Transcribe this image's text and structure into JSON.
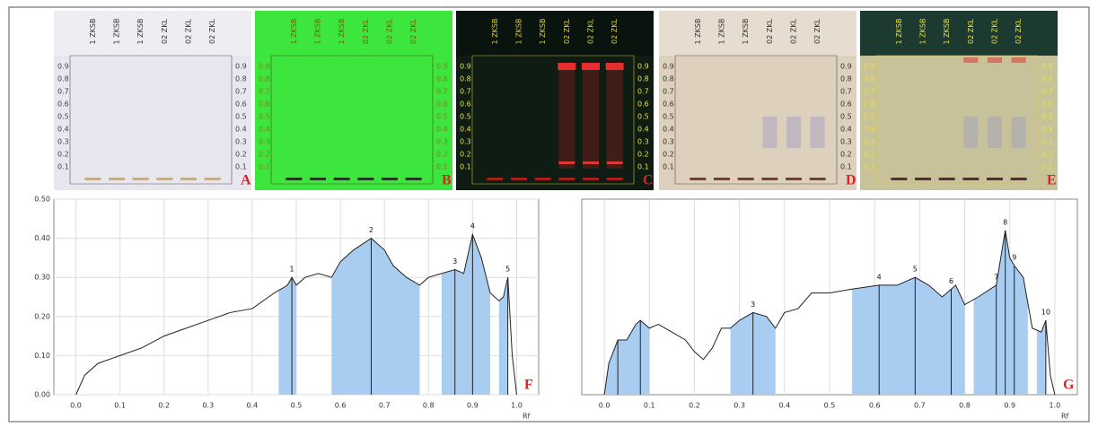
{
  "plates": [
    {
      "label": "A"
    },
    {
      "label": "B"
    },
    {
      "label": "C"
    },
    {
      "label": "D"
    },
    {
      "label": "E"
    }
  ],
  "plate_lanes": [
    "1 ZKSB",
    "1 ZKSB",
    "1 ZKSB",
    "02 ZKL",
    "02 ZKL",
    "02 ZKL"
  ],
  "plate_rf_ticks": [
    0.1,
    0.2,
    0.3,
    0.4,
    0.5,
    0.6,
    0.7,
    0.8,
    0.9
  ],
  "chart_data": [
    {
      "type": "line",
      "panel": "F",
      "x_label": "Rf",
      "x": [
        0.0,
        0.02,
        0.05,
        0.1,
        0.15,
        0.2,
        0.25,
        0.3,
        0.35,
        0.4,
        0.45,
        0.48,
        0.49,
        0.5,
        0.52,
        0.55,
        0.58,
        0.6,
        0.63,
        0.67,
        0.7,
        0.72,
        0.75,
        0.78,
        0.8,
        0.83,
        0.86,
        0.88,
        0.9,
        0.92,
        0.94,
        0.96,
        0.97,
        0.98,
        0.99,
        1.0
      ],
      "values": [
        0.0,
        0.05,
        0.08,
        0.1,
        0.12,
        0.15,
        0.17,
        0.19,
        0.21,
        0.22,
        0.26,
        0.28,
        0.3,
        0.28,
        0.3,
        0.31,
        0.3,
        0.34,
        0.37,
        0.4,
        0.37,
        0.33,
        0.3,
        0.28,
        0.3,
        0.31,
        0.32,
        0.31,
        0.41,
        0.35,
        0.26,
        0.24,
        0.25,
        0.3,
        0.1,
        0.0
      ],
      "regions": [
        [
          0.46,
          0.5
        ],
        [
          0.58,
          0.78
        ],
        [
          0.83,
          0.88
        ],
        [
          0.88,
          0.94
        ],
        [
          0.96,
          0.98
        ]
      ],
      "peaks": [
        {
          "label": "1",
          "x": 0.49,
          "y": 0.3
        },
        {
          "label": "2",
          "x": 0.67,
          "y": 0.4
        },
        {
          "label": "3",
          "x": 0.86,
          "y": 0.32
        },
        {
          "label": "4",
          "x": 0.9,
          "y": 0.41
        },
        {
          "label": "5",
          "x": 0.98,
          "y": 0.3
        }
      ],
      "xlim": [
        -0.05,
        1.05
      ],
      "ylim": [
        0,
        0.5
      ],
      "xticks": [
        {
          "value": 0,
          "label": "0.0"
        },
        0.1,
        0.2,
        0.3,
        0.4,
        0.5,
        0.6,
        0.7,
        0.8,
        0.9,
        {
          "value": 1,
          "label": "1.0"
        }
      ],
      "yticks": [
        {
          "value": 0,
          "label": "0.00"
        },
        {
          "value": 0.1,
          "label": "0.10"
        },
        {
          "value": 0.2,
          "label": "0.20"
        },
        {
          "value": 0.3,
          "label": "0.30"
        },
        {
          "value": 0.4,
          "label": "0.40"
        },
        {
          "value": 0.5,
          "label": "0.50"
        }
      ],
      "grid": true,
      "color": "#222222",
      "fill": "#a9cdf0"
    },
    {
      "type": "line",
      "panel": "G",
      "x_label": "Rf",
      "x": [
        0.0,
        0.01,
        0.03,
        0.05,
        0.07,
        0.08,
        0.1,
        0.12,
        0.15,
        0.18,
        0.2,
        0.22,
        0.24,
        0.26,
        0.28,
        0.3,
        0.33,
        0.36,
        0.38,
        0.4,
        0.43,
        0.46,
        0.5,
        0.55,
        0.61,
        0.65,
        0.69,
        0.72,
        0.75,
        0.78,
        0.8,
        0.83,
        0.87,
        0.89,
        0.9,
        0.91,
        0.93,
        0.95,
        0.97,
        0.98,
        0.99,
        1.0
      ],
      "values": [
        0.0,
        0.08,
        0.14,
        0.14,
        0.18,
        0.19,
        0.17,
        0.18,
        0.16,
        0.14,
        0.11,
        0.09,
        0.12,
        0.17,
        0.17,
        0.19,
        0.21,
        0.2,
        0.17,
        0.21,
        0.22,
        0.26,
        0.26,
        0.27,
        0.28,
        0.28,
        0.3,
        0.28,
        0.25,
        0.28,
        0.23,
        0.25,
        0.28,
        0.42,
        0.35,
        0.33,
        0.3,
        0.17,
        0.16,
        0.19,
        0.05,
        0.0
      ],
      "regions": [
        [
          0.0,
          0.1
        ],
        [
          0.28,
          0.38
        ],
        [
          0.55,
          0.8
        ],
        [
          0.82,
          0.94
        ],
        [
          0.96,
          0.98
        ]
      ],
      "peaks": [
        {
          "label": null,
          "x": 0.03,
          "y": 0.14
        },
        {
          "label": null,
          "x": 0.08,
          "y": 0.19
        },
        {
          "label": "3",
          "x": 0.33,
          "y": 0.21
        },
        {
          "label": "4",
          "x": 0.61,
          "y": 0.28
        },
        {
          "label": "5",
          "x": 0.69,
          "y": 0.3
        },
        {
          "label": "6",
          "x": 0.77,
          "y": 0.27
        },
        {
          "label": "7",
          "x": 0.87,
          "y": 0.28
        },
        {
          "label": "8",
          "x": 0.89,
          "y": 0.42
        },
        {
          "label": "9",
          "x": 0.91,
          "y": 0.33
        },
        {
          "label": "10",
          "x": 0.98,
          "y": 0.19
        }
      ],
      "xlim": [
        -0.05,
        1.05
      ],
      "ylim": [
        0,
        0.5
      ],
      "xticks": [
        {
          "value": 0,
          "label": "0.0"
        },
        0.1,
        0.2,
        0.3,
        0.4,
        0.5,
        0.6,
        0.7,
        0.8,
        0.9,
        {
          "value": 1,
          "label": "1.0"
        }
      ],
      "grid": true,
      "color": "#222222",
      "fill": "#a9cdf0"
    }
  ]
}
